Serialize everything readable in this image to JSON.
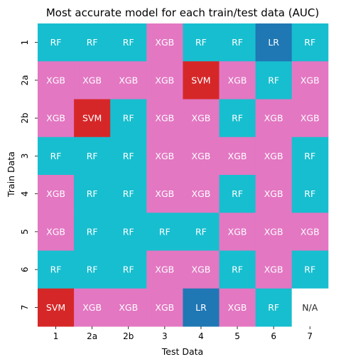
{
  "chart_data": {
    "type": "heatmap",
    "title": "Most accurate model for each train/test data (AUC)",
    "xlabel": "Test Data",
    "ylabel": "Train Data",
    "x_categories": [
      "1",
      "2a",
      "2b",
      "3",
      "4",
      "5",
      "6",
      "7"
    ],
    "y_categories": [
      "1",
      "2a",
      "2b",
      "3",
      "4",
      "5",
      "6",
      "7"
    ],
    "cells": [
      [
        "RF",
        "RF",
        "RF",
        "XGB",
        "RF",
        "RF",
        "LR",
        "RF"
      ],
      [
        "XGB",
        "XGB",
        "XGB",
        "XGB",
        "SVM",
        "XGB",
        "RF",
        "XGB"
      ],
      [
        "XGB",
        "SVM",
        "RF",
        "XGB",
        "XGB",
        "RF",
        "XGB",
        "XGB"
      ],
      [
        "RF",
        "RF",
        "RF",
        "XGB",
        "XGB",
        "XGB",
        "XGB",
        "RF"
      ],
      [
        "XGB",
        "RF",
        "RF",
        "XGB",
        "XGB",
        "RF",
        "XGB",
        "RF"
      ],
      [
        "XGB",
        "RF",
        "RF",
        "RF",
        "RF",
        "XGB",
        "XGB",
        "XGB"
      ],
      [
        "RF",
        "RF",
        "RF",
        "XGB",
        "XGB",
        "RF",
        "XGB",
        "RF"
      ],
      [
        "SVM",
        "XGB",
        "XGB",
        "XGB",
        "LR",
        "XGB",
        "RF",
        "N/A"
      ]
    ],
    "colors": {
      "RF": "#17becf",
      "XGB": "#e377c2",
      "SVM": "#d62728",
      "LR": "#1f77b4",
      "N/A": "#ffffff"
    },
    "text_colors": {
      "default": "#ffffff",
      "N/A": "#262626"
    },
    "grid": false
  }
}
